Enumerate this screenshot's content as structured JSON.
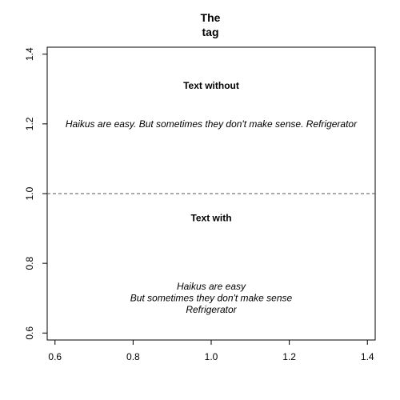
{
  "chart_data": {
    "type": "scatter",
    "title_lines": [
      "The",
      "tag"
    ],
    "xlim": [
      0.58,
      1.42
    ],
    "ylim": [
      0.58,
      1.42
    ],
    "x_ticks": [
      {
        "value": 0.6,
        "label": "0.6"
      },
      {
        "value": 0.8,
        "label": "0.8"
      },
      {
        "value": 1.0,
        "label": "1.0"
      },
      {
        "value": 1.2,
        "label": "1.2"
      },
      {
        "value": 1.4,
        "label": "1.4"
      }
    ],
    "y_ticks": [
      {
        "value": 0.6,
        "label": "0.6"
      },
      {
        "value": 0.8,
        "label": "0.8"
      },
      {
        "value": 1.0,
        "label": "1.0"
      },
      {
        "value": 1.2,
        "label": "1.2"
      },
      {
        "value": 1.4,
        "label": "1.4"
      }
    ],
    "reference_line": {
      "y": 1.0,
      "style": "dashed"
    },
    "annotations": [
      {
        "id": "text-without-heading",
        "x": 1.0,
        "y": 1.31,
        "lines": [
          "Text without"
        ],
        "style": "bold"
      },
      {
        "id": "haiku-single-line",
        "x": 1.0,
        "y": 1.2,
        "lines": [
          "Haikus are easy. But sometimes they don't make sense. Refrigerator"
        ],
        "style": "italic"
      },
      {
        "id": "text-with-heading",
        "x": 1.0,
        "y": 0.93,
        "lines": [
          "Text with"
        ],
        "style": "bold"
      },
      {
        "id": "haiku-multi-line",
        "x": 1.0,
        "y": 0.7,
        "lines": [
          "Haikus are easy",
          "But sometimes they don't make sense",
          "Refrigerator"
        ],
        "style": "italic"
      }
    ]
  }
}
